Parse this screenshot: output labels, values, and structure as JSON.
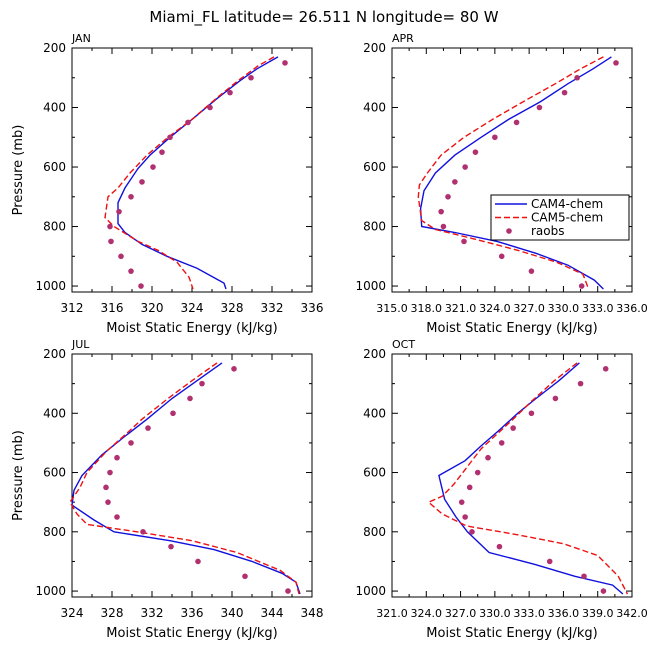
{
  "figure": {
    "title": "Miami_FL  latitude= 26.511 N longitude= 80 W",
    "legend": {
      "entries": [
        {
          "label": "CAM4-chem",
          "color": "#1111dd",
          "style": "solid"
        },
        {
          "label": "CAM5-chem",
          "color": "#ee1111",
          "style": "dashed"
        },
        {
          "label": "raobs",
          "color": "#b03070",
          "style": "marker"
        }
      ]
    }
  },
  "chart_data": [
    {
      "type": "line",
      "panel_label": "JAN",
      "xlabel": "Moist Static Energy (kJ/kg)",
      "ylabel": "Pressure (mb)",
      "xlim": [
        312,
        336
      ],
      "ylim": [
        1020,
        200
      ],
      "xticks": [
        "312",
        "316",
        "320",
        "324",
        "328",
        "332",
        "336"
      ],
      "yticks": [
        "200",
        "400",
        "600",
        "800",
        "1000"
      ],
      "series": [
        {
          "name": "CAM4-chem",
          "points": [
            [
              332.6,
              230
            ],
            [
              330.5,
              270
            ],
            [
              328.8,
              310
            ],
            [
              326.5,
              370
            ],
            [
              324,
              440
            ],
            [
              321.8,
              500
            ],
            [
              319.8,
              560
            ],
            [
              318.6,
              605
            ],
            [
              317.3,
              670
            ],
            [
              316.6,
              720
            ],
            [
              316.6,
              790
            ],
            [
              317.3,
              820
            ],
            [
              319,
              860
            ],
            [
              321.5,
              900
            ],
            [
              324.5,
              940
            ],
            [
              327.2,
              990
            ],
            [
              327.4,
              1010
            ]
          ]
        },
        {
          "name": "CAM5-chem",
          "points": [
            [
              332.2,
              230
            ],
            [
              330.6,
              260
            ],
            [
              328.6,
              310
            ],
            [
              326.4,
              370
            ],
            [
              324,
              440
            ],
            [
              321.6,
              500
            ],
            [
              319.5,
              560
            ],
            [
              317.8,
              620
            ],
            [
              316.6,
              670
            ],
            [
              315.6,
              700
            ],
            [
              315.3,
              770
            ],
            [
              316.2,
              800
            ],
            [
              318.6,
              850
            ],
            [
              320.6,
              880
            ],
            [
              322.5,
              920
            ],
            [
              323.7,
              970
            ],
            [
              324.1,
              1010
            ]
          ]
        },
        {
          "name": "raobs",
          "points": [
            [
              333.3,
              250
            ],
            [
              329.9,
              300
            ],
            [
              327.8,
              350
            ],
            [
              325.8,
              400
            ],
            [
              323.6,
              450
            ],
            [
              321.8,
              500
            ],
            [
              321,
              550
            ],
            [
              320.1,
              600
            ],
            [
              319,
              650
            ],
            [
              317.9,
              700
            ],
            [
              316.7,
              750
            ],
            [
              315.8,
              800
            ],
            [
              315.9,
              850
            ],
            [
              316.9,
              900
            ],
            [
              317.9,
              950
            ],
            [
              318.9,
              1000
            ]
          ]
        }
      ]
    },
    {
      "type": "line",
      "panel_label": "APR",
      "xlabel": "Moist Static Energy (kJ/kg)",
      "ylabel": "",
      "xlim": [
        315.0,
        336.0
      ],
      "ylim": [
        1020,
        200
      ],
      "xticks": [
        "315.0",
        "318.0",
        "321.0",
        "324.0",
        "327.0",
        "330.0",
        "333.0",
        "336.0"
      ],
      "yticks": [
        "200",
        "400",
        "600",
        "800",
        "1000"
      ],
      "series": [
        {
          "name": "CAM4-chem",
          "points": [
            [
              334.2,
              230
            ],
            [
              332.6,
              270
            ],
            [
              330.4,
              320
            ],
            [
              328,
              380
            ],
            [
              325.2,
              440
            ],
            [
              322.8,
              500
            ],
            [
              320.5,
              560
            ],
            [
              318.8,
              620
            ],
            [
              317.8,
              680
            ],
            [
              317.5,
              740
            ],
            [
              317.6,
              800
            ],
            [
              320.5,
              820
            ],
            [
              324.2,
              850
            ],
            [
              327.6,
              890
            ],
            [
              330.4,
              930
            ],
            [
              332.7,
              980
            ],
            [
              333.5,
              1010
            ]
          ]
        },
        {
          "name": "CAM5-chem",
          "points": [
            [
              333.5,
              230
            ],
            [
              331.5,
              270
            ],
            [
              329.3,
              320
            ],
            [
              326.5,
              380
            ],
            [
              323.8,
              440
            ],
            [
              321.3,
              500
            ],
            [
              319.3,
              560
            ],
            [
              318.1,
              620
            ],
            [
              317.4,
              660
            ],
            [
              317.3,
              700
            ],
            [
              317.6,
              780
            ],
            [
              318.8,
              810
            ],
            [
              322,
              840
            ],
            [
              326,
              880
            ],
            [
              329.4,
              920
            ],
            [
              331.7,
              960
            ],
            [
              332.2,
              1010
            ]
          ]
        },
        {
          "name": "raobs",
          "points": [
            [
              334.6,
              250
            ],
            [
              331.2,
              300
            ],
            [
              330.1,
              350
            ],
            [
              327.9,
              400
            ],
            [
              325.9,
              450
            ],
            [
              324,
              500
            ],
            [
              322.3,
              550
            ],
            [
              321.4,
              600
            ],
            [
              320.5,
              650
            ],
            [
              319.9,
              700
            ],
            [
              319.3,
              750
            ],
            [
              319.5,
              800
            ],
            [
              321.3,
              850
            ],
            [
              324.6,
              900
            ],
            [
              327.2,
              950
            ],
            [
              331.6,
              1000
            ]
          ]
        }
      ]
    },
    {
      "type": "line",
      "panel_label": "JUL",
      "xlabel": "Moist Static Energy (kJ/kg)",
      "ylabel": "Pressure (mb)",
      "xlim": [
        324,
        348
      ],
      "ylim": [
        1020,
        200
      ],
      "xticks": [
        "324",
        "328",
        "332",
        "336",
        "340",
        "344",
        "348"
      ],
      "yticks": [
        "200",
        "400",
        "600",
        "800",
        "1000"
      ],
      "series": [
        {
          "name": "CAM4-chem",
          "points": [
            [
              339,
              230
            ],
            [
              336.5,
              290
            ],
            [
              334,
              350
            ],
            [
              331.5,
              420
            ],
            [
              329.2,
              480
            ],
            [
              327,
              540
            ],
            [
              325,
              610
            ],
            [
              324.2,
              660
            ],
            [
              324,
              710
            ],
            [
              326.2,
              760
            ],
            [
              328.2,
              800
            ],
            [
              333.8,
              830
            ],
            [
              338.2,
              860
            ],
            [
              342,
              900
            ],
            [
              345,
              940
            ],
            [
              346.4,
              970
            ],
            [
              346.8,
              1010
            ]
          ]
        },
        {
          "name": "CAM5-chem",
          "points": [
            [
              338.5,
              230
            ],
            [
              336,
              290
            ],
            [
              333.6,
              350
            ],
            [
              331,
              420
            ],
            [
              329.4,
              470
            ],
            [
              327.4,
              530
            ],
            [
              325.5,
              600
            ],
            [
              324.8,
              650
            ],
            [
              323.8,
              700
            ],
            [
              324.5,
              740
            ],
            [
              325.5,
              775
            ],
            [
              330.5,
              800
            ],
            [
              336,
              830
            ],
            [
              340.5,
              870
            ],
            [
              344.8,
              930
            ],
            [
              346.4,
              970
            ],
            [
              346.7,
              1010
            ]
          ]
        },
        {
          "name": "raobs",
          "points": [
            [
              340.2,
              250
            ],
            [
              337,
              300
            ],
            [
              335.8,
              350
            ],
            [
              334.1,
              400
            ],
            [
              331.6,
              450
            ],
            [
              329.9,
              500
            ],
            [
              328.5,
              550
            ],
            [
              327.8,
              600
            ],
            [
              327.4,
              650
            ],
            [
              327.6,
              700
            ],
            [
              328.5,
              750
            ],
            [
              331.1,
              800
            ],
            [
              333.9,
              850
            ],
            [
              336.6,
              900
            ],
            [
              341.3,
              950
            ],
            [
              345.6,
              1000
            ]
          ]
        }
      ]
    },
    {
      "type": "line",
      "panel_label": "OCT",
      "xlabel": "Moist Static Energy (kJ/kg)",
      "ylabel": "",
      "xlim": [
        321.0,
        342.0
      ],
      "ylim": [
        1020,
        200
      ],
      "xticks": [
        "321.0",
        "324.0",
        "327.0",
        "330.0",
        "333.0",
        "336.0",
        "339.0",
        "342.0"
      ],
      "yticks": [
        "200",
        "400",
        "600",
        "800",
        "1000"
      ],
      "series": [
        {
          "name": "CAM4-chem",
          "points": [
            [
              337.4,
              230
            ],
            [
              335.6,
              290
            ],
            [
              333.6,
              350
            ],
            [
              332,
              400
            ],
            [
              330.3,
              460
            ],
            [
              328.8,
              510
            ],
            [
              327.4,
              560
            ],
            [
              325.1,
              610
            ],
            [
              325.6,
              690
            ],
            [
              326.6,
              750
            ],
            [
              327.6,
              800
            ],
            [
              329.5,
              870
            ],
            [
              333.5,
              910
            ],
            [
              337,
              950
            ],
            [
              340.3,
              980
            ],
            [
              341.2,
              1010
            ]
          ]
        },
        {
          "name": "CAM5-chem",
          "points": [
            [
              337.2,
              230
            ],
            [
              335.2,
              290
            ],
            [
              333.2,
              360
            ],
            [
              331.6,
              420
            ],
            [
              330.2,
              470
            ],
            [
              328.8,
              520
            ],
            [
              327.6,
              580
            ],
            [
              326.4,
              640
            ],
            [
              325.4,
              680
            ],
            [
              324.2,
              700
            ],
            [
              325.4,
              740
            ],
            [
              327.5,
              780
            ],
            [
              332,
              810
            ],
            [
              336,
              840
            ],
            [
              339,
              880
            ],
            [
              340.8,
              950
            ],
            [
              341.6,
              1010
            ]
          ]
        },
        {
          "name": "raobs",
          "points": [
            [
              339.7,
              250
            ],
            [
              337.5,
              300
            ],
            [
              335.3,
              350
            ],
            [
              333.2,
              400
            ],
            [
              331.6,
              450
            ],
            [
              330.6,
              500
            ],
            [
              329.4,
              550
            ],
            [
              328.5,
              600
            ],
            [
              327.8,
              650
            ],
            [
              327.1,
              700
            ],
            [
              327.4,
              750
            ],
            [
              328,
              800
            ],
            [
              330.4,
              850
            ],
            [
              334.8,
              900
            ],
            [
              337.8,
              950
            ],
            [
              339.5,
              1000
            ]
          ]
        }
      ]
    }
  ]
}
